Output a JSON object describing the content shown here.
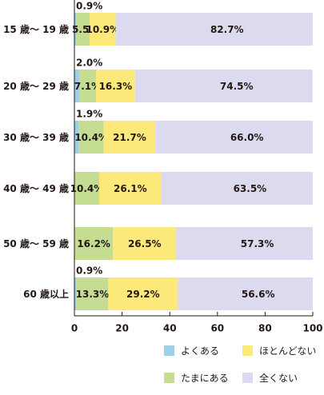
{
  "chart_data": {
    "type": "bar",
    "orientation": "horizontal",
    "stacked": true,
    "categories": [
      "15 歳〜 19 歳",
      "20 歳〜 29 歳",
      "30 歳〜 39 歳",
      "40 歳〜 49 歳",
      "50 歳〜 59 歳",
      "60 歳以上"
    ],
    "series": [
      {
        "name": "よくある",
        "color": "#9fcfe6",
        "values": [
          0.9,
          2.0,
          1.9,
          0.0,
          0.0,
          0.9
        ]
      },
      {
        "name": "たまにある",
        "color": "#c4dd92",
        "values": [
          5.5,
          7.1,
          10.4,
          10.4,
          16.2,
          13.3
        ]
      },
      {
        "name": "ほとんどない",
        "color": "#fde87a",
        "values": [
          10.9,
          16.3,
          21.7,
          26.1,
          26.5,
          29.2
        ]
      },
      {
        "name": "全くない",
        "color": "#dcdaee",
        "values": [
          82.7,
          74.5,
          66.0,
          63.5,
          57.3,
          56.6
        ]
      }
    ],
    "data_labels": {
      "above": [
        "0.9%",
        "2.0%",
        "1.9%",
        null,
        null,
        "0.9%"
      ],
      "inside": [
        [
          null,
          "5.5%",
          "10.9%",
          "82.7%"
        ],
        [
          null,
          "7.1%",
          "16.3%",
          "74.5%"
        ],
        [
          null,
          "10.4%",
          "21.7%",
          "66.0%"
        ],
        [
          null,
          "10.4%",
          "26.1%",
          "63.5%"
        ],
        [
          null,
          "16.2%",
          "26.5%",
          "57.3%"
        ],
        [
          null,
          "13.3%",
          "29.2%",
          "56.6%"
        ]
      ]
    },
    "xlim": [
      0,
      100
    ],
    "xticks": [
      "0",
      "20",
      "40",
      "60",
      "80",
      "100"
    ],
    "grid": false,
    "legend_position": "bottom-right"
  },
  "legend": [
    {
      "label": "よくある",
      "color": "#9fcfe6"
    },
    {
      "label": "ほとんどない",
      "color": "#fde87a"
    },
    {
      "label": "たまにある",
      "color": "#c4dd92"
    },
    {
      "label": "全くない",
      "color": "#dcdaee"
    }
  ]
}
